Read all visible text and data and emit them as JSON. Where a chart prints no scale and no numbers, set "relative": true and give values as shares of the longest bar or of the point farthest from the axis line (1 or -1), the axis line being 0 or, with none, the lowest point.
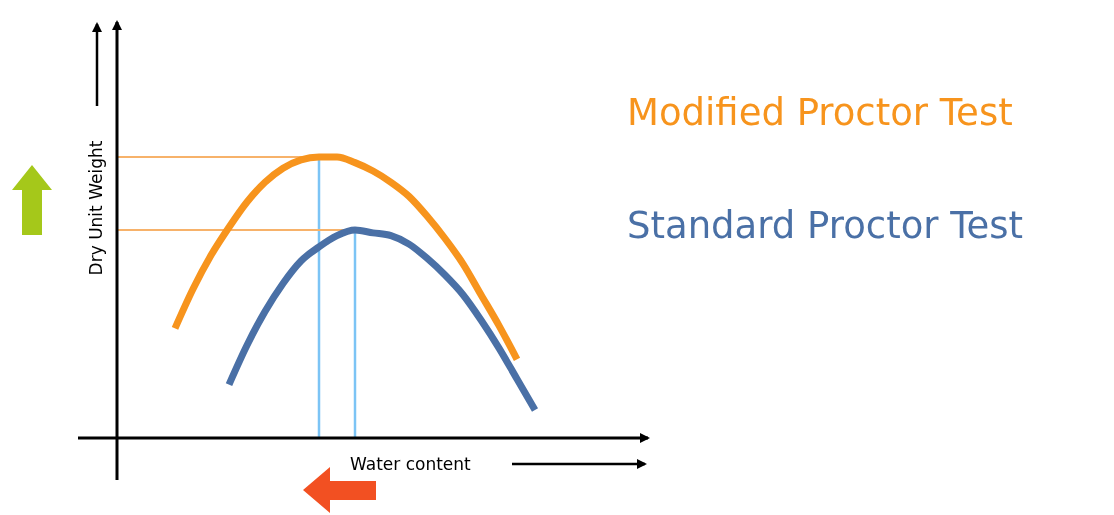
{
  "chart_data": {
    "type": "line",
    "relative": true,
    "xlabel": "Water content",
    "ylabel": "Dry Unit Weight",
    "legend": "right",
    "categories": [
      null,
      null,
      null,
      null,
      null,
      null,
      null,
      null,
      null,
      null,
      null,
      null,
      null,
      null,
      null,
      null,
      null,
      null,
      null,
      null,
      null
    ],
    "series": [
      {
        "name": "Modified Proctor Test",
        "color": "#f7941d",
        "values": [
          0.39,
          0.53,
          0.65,
          0.75,
          0.84,
          0.91,
          0.96,
          0.99,
          1,
          1,
          0.98,
          0.95,
          0.91,
          0.86,
          0.79,
          0.71,
          0.62,
          0.51,
          0.4,
          0.28,
          null
        ]
      },
      {
        "name": "Standard Proctor Test",
        "color": "#4a70a6",
        "values": [
          null,
          null,
          null,
          0.19,
          0.33,
          0.45,
          0.55,
          0.63,
          0.68,
          0.72,
          0.74,
          0.73,
          0.72,
          0.69,
          0.64,
          0.58,
          0.51,
          0.42,
          0.32,
          0.21,
          0.1
        ]
      }
    ],
    "ref_lines": [
      {
        "axis": "y",
        "value": 1,
        "color": "#f7b26a"
      },
      {
        "axis": "y",
        "value": 0.74,
        "color": "#f7b26a"
      }
    ]
  }
}
